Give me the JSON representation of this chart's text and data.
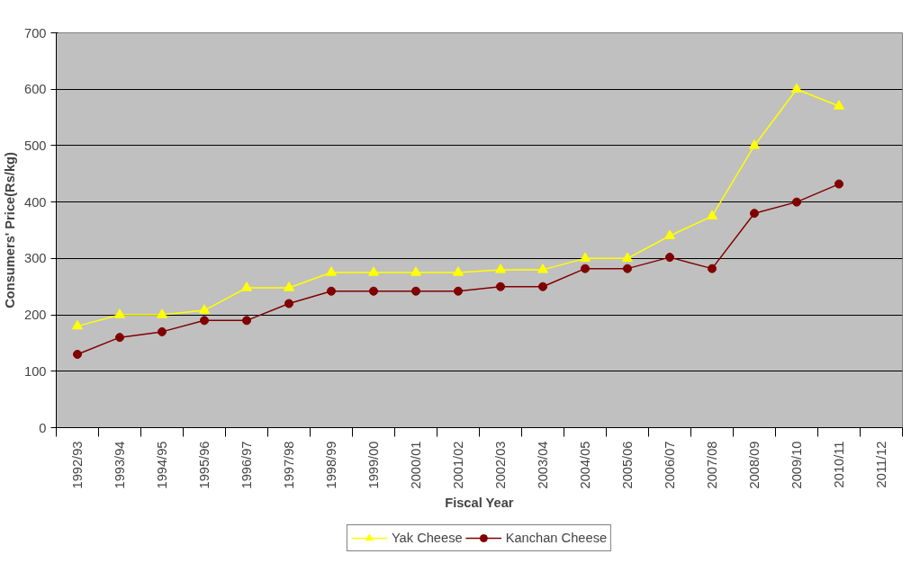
{
  "chart_data": {
    "type": "line",
    "xlabel": "Fiscal Year",
    "ylabel": "Consumers' Price(Rs/kg)",
    "categories": [
      "1992/93",
      "1993/94",
      "1994/95",
      "1995/96",
      "1996/97",
      "1997/98",
      "1998/99",
      "1999/00",
      "2000/01",
      "2001/02",
      "2002/03",
      "2003/04",
      "2004/05",
      "2005/06",
      "2006/07",
      "2007/08",
      "2008/09",
      "2009/10",
      "2010/11",
      "2011/12"
    ],
    "series": [
      {
        "name": "Yak Cheese",
        "color": "#ffff00",
        "marker": "triangle",
        "values": [
          180,
          200,
          200,
          208,
          248,
          248,
          275,
          275,
          275,
          275,
          280,
          280,
          300,
          300,
          340,
          375,
          500,
          600,
          570,
          null
        ]
      },
      {
        "name": "Kanchan Cheese",
        "color": "#800000",
        "marker": "circle",
        "values": [
          130,
          160,
          170,
          190,
          190,
          220,
          242,
          242,
          242,
          242,
          250,
          250,
          282,
          282,
          302,
          282,
          380,
          400,
          432,
          null
        ]
      }
    ],
    "ylim": [
      0,
      700
    ],
    "yticks": [
      0,
      100,
      200,
      300,
      400,
      500,
      600,
      700
    ],
    "grid": "y",
    "legend": "bottom"
  }
}
